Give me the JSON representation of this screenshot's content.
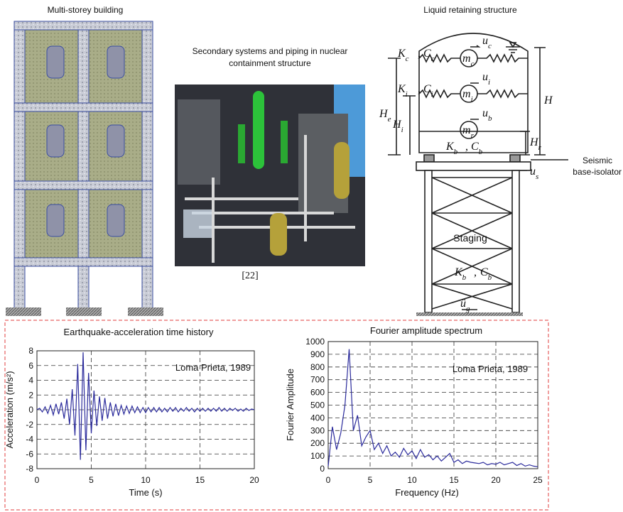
{
  "figure": {
    "building_title": "Multi-storey building",
    "nuclear_title": [
      "Secondary systems and piping in nuclear",
      "containment structure"
    ],
    "reference": "[22]",
    "tank_title": "Liquid retaining structure",
    "isolator_label": [
      "Seismic",
      "base-isolator"
    ],
    "staging_label": "Staging",
    "tank_symbols": [
      {
        "text": "K",
        "sub": "c"
      },
      {
        "text": ","
      },
      {
        "text": "C",
        "sub": "c"
      },
      {
        "text": "u",
        "sub": "c"
      },
      {
        "text": "m",
        "sub": "c"
      },
      {
        "text": "K",
        "sub": "i"
      },
      {
        "text": ","
      },
      {
        "text": "C",
        "sub": "i"
      },
      {
        "text": "u",
        "sub": "i"
      },
      {
        "text": "m",
        "sub": "i"
      },
      {
        "text": "u",
        "sub": "b"
      },
      {
        "text": "m",
        "sub": "r"
      },
      {
        "text": "K",
        "sub": "b"
      },
      {
        "text": ","
      },
      {
        "text": "C",
        "sub": "b"
      },
      {
        "text": "H",
        "sub": "e"
      },
      {
        "text": "H",
        "sub": "i"
      },
      {
        "text": "H"
      },
      {
        "text": "H",
        "sub": "r"
      },
      {
        "text": "u",
        "sub": "s"
      },
      {
        "text": "K",
        "sub": "b"
      },
      {
        "text": ","
      },
      {
        "text": "C",
        "sub": "b"
      },
      {
        "text": "ü",
        "sub": "g"
      }
    ]
  },
  "chart_data": [
    {
      "type": "line",
      "title": "Earthquake-acceleration time history",
      "x_label": "Time (s)",
      "y_label": "Acceleration (m/s²)",
      "annotation": "Loma Prieta, 1989",
      "color": "#2b2b9c",
      "grid": true,
      "xlim": [
        0,
        20
      ],
      "xticks": [
        0,
        5,
        10,
        15,
        20
      ],
      "ylim": [
        -8,
        8
      ],
      "yticks": [
        -8,
        -6,
        -4,
        -2,
        0,
        2,
        4,
        6,
        8
      ],
      "x": [
        0,
        0.25,
        0.5,
        0.75,
        1,
        1.25,
        1.5,
        1.75,
        2,
        2.25,
        2.5,
        2.75,
        3,
        3.25,
        3.5,
        3.75,
        4,
        4.25,
        4.5,
        4.75,
        5,
        5.25,
        5.5,
        5.75,
        6,
        6.25,
        6.5,
        6.75,
        7,
        7.25,
        7.5,
        7.75,
        8,
        8.25,
        8.5,
        8.75,
        9,
        9.25,
        9.5,
        9.75,
        10,
        10.25,
        10.5,
        10.75,
        11,
        11.25,
        11.5,
        11.75,
        12,
        12.25,
        12.5,
        12.75,
        13,
        13.25,
        13.5,
        13.75,
        14,
        14.25,
        14.5,
        14.75,
        15,
        15.25,
        15.5,
        15.75,
        16,
        16.25,
        16.5,
        16.75,
        17,
        17.25,
        17.5,
        17.75,
        18,
        18.25,
        18.5,
        18.75,
        19,
        19.25,
        19.5,
        19.75,
        20
      ],
      "values": [
        0,
        0.2,
        -0.3,
        0.4,
        -0.5,
        0.6,
        -0.7,
        0.8,
        -0.6,
        1.0,
        -1.2,
        1.5,
        -2.0,
        2.8,
        -3.5,
        6.2,
        -6.8,
        7.8,
        -5.5,
        5.0,
        -3.2,
        2.6,
        -2.2,
        1.8,
        -1.5,
        1.6,
        -1.2,
        1.0,
        -0.9,
        0.8,
        -0.8,
        0.6,
        -0.6,
        0.5,
        -0.5,
        0.5,
        -0.4,
        0.4,
        -0.4,
        0.3,
        -0.4,
        0.3,
        -0.3,
        0.3,
        -0.3,
        0.3,
        -0.3,
        0.2,
        -0.3,
        0.3,
        -0.2,
        0.3,
        -0.3,
        0.2,
        -0.2,
        0.3,
        -0.2,
        0.2,
        -0.3,
        0.2,
        -0.2,
        0.2,
        -0.2,
        0.2,
        -0.2,
        0.2,
        -0.2,
        0.3,
        -0.2,
        0.2,
        -0.2,
        0.2,
        -0.1,
        0.2,
        -0.2,
        0.1,
        -0.2,
        0.2,
        -0.1,
        0.1,
        0
      ]
    },
    {
      "type": "line",
      "title": "Fourier amplitude spectrum",
      "x_label": "Frequency (Hz)",
      "y_label": "Fourier Amplitude",
      "annotation": "Loma Prieta, 1989",
      "color": "#2b2b9c",
      "grid": true,
      "xlim": [
        0,
        25
      ],
      "xticks": [
        0,
        5,
        10,
        15,
        20,
        25
      ],
      "ylim": [
        0,
        1000
      ],
      "yticks": [
        0,
        100,
        200,
        300,
        400,
        500,
        600,
        700,
        800,
        900,
        1000
      ],
      "x": [
        0,
        0.5,
        1,
        1.5,
        2,
        2.5,
        3,
        3.5,
        4,
        4.5,
        5,
        5.5,
        6,
        6.5,
        7,
        7.5,
        8,
        8.5,
        9,
        9.5,
        10,
        10.5,
        11,
        11.5,
        12,
        12.5,
        13,
        13.5,
        14,
        14.5,
        15,
        15.5,
        16,
        16.5,
        17,
        17.5,
        18,
        18.5,
        19,
        19.5,
        20,
        20.5,
        21,
        21.5,
        22,
        22.5,
        23,
        23.5,
        24,
        24.5,
        25
      ],
      "values": [
        20,
        330,
        150,
        280,
        500,
        940,
        300,
        420,
        180,
        250,
        300,
        150,
        200,
        120,
        180,
        100,
        130,
        90,
        160,
        110,
        140,
        80,
        150,
        90,
        110,
        70,
        100,
        60,
        90,
        120,
        50,
        70,
        40,
        60,
        50,
        45,
        40,
        50,
        30,
        40,
        35,
        50,
        30,
        40,
        50,
        25,
        40,
        20,
        30,
        20,
        15
      ]
    }
  ]
}
